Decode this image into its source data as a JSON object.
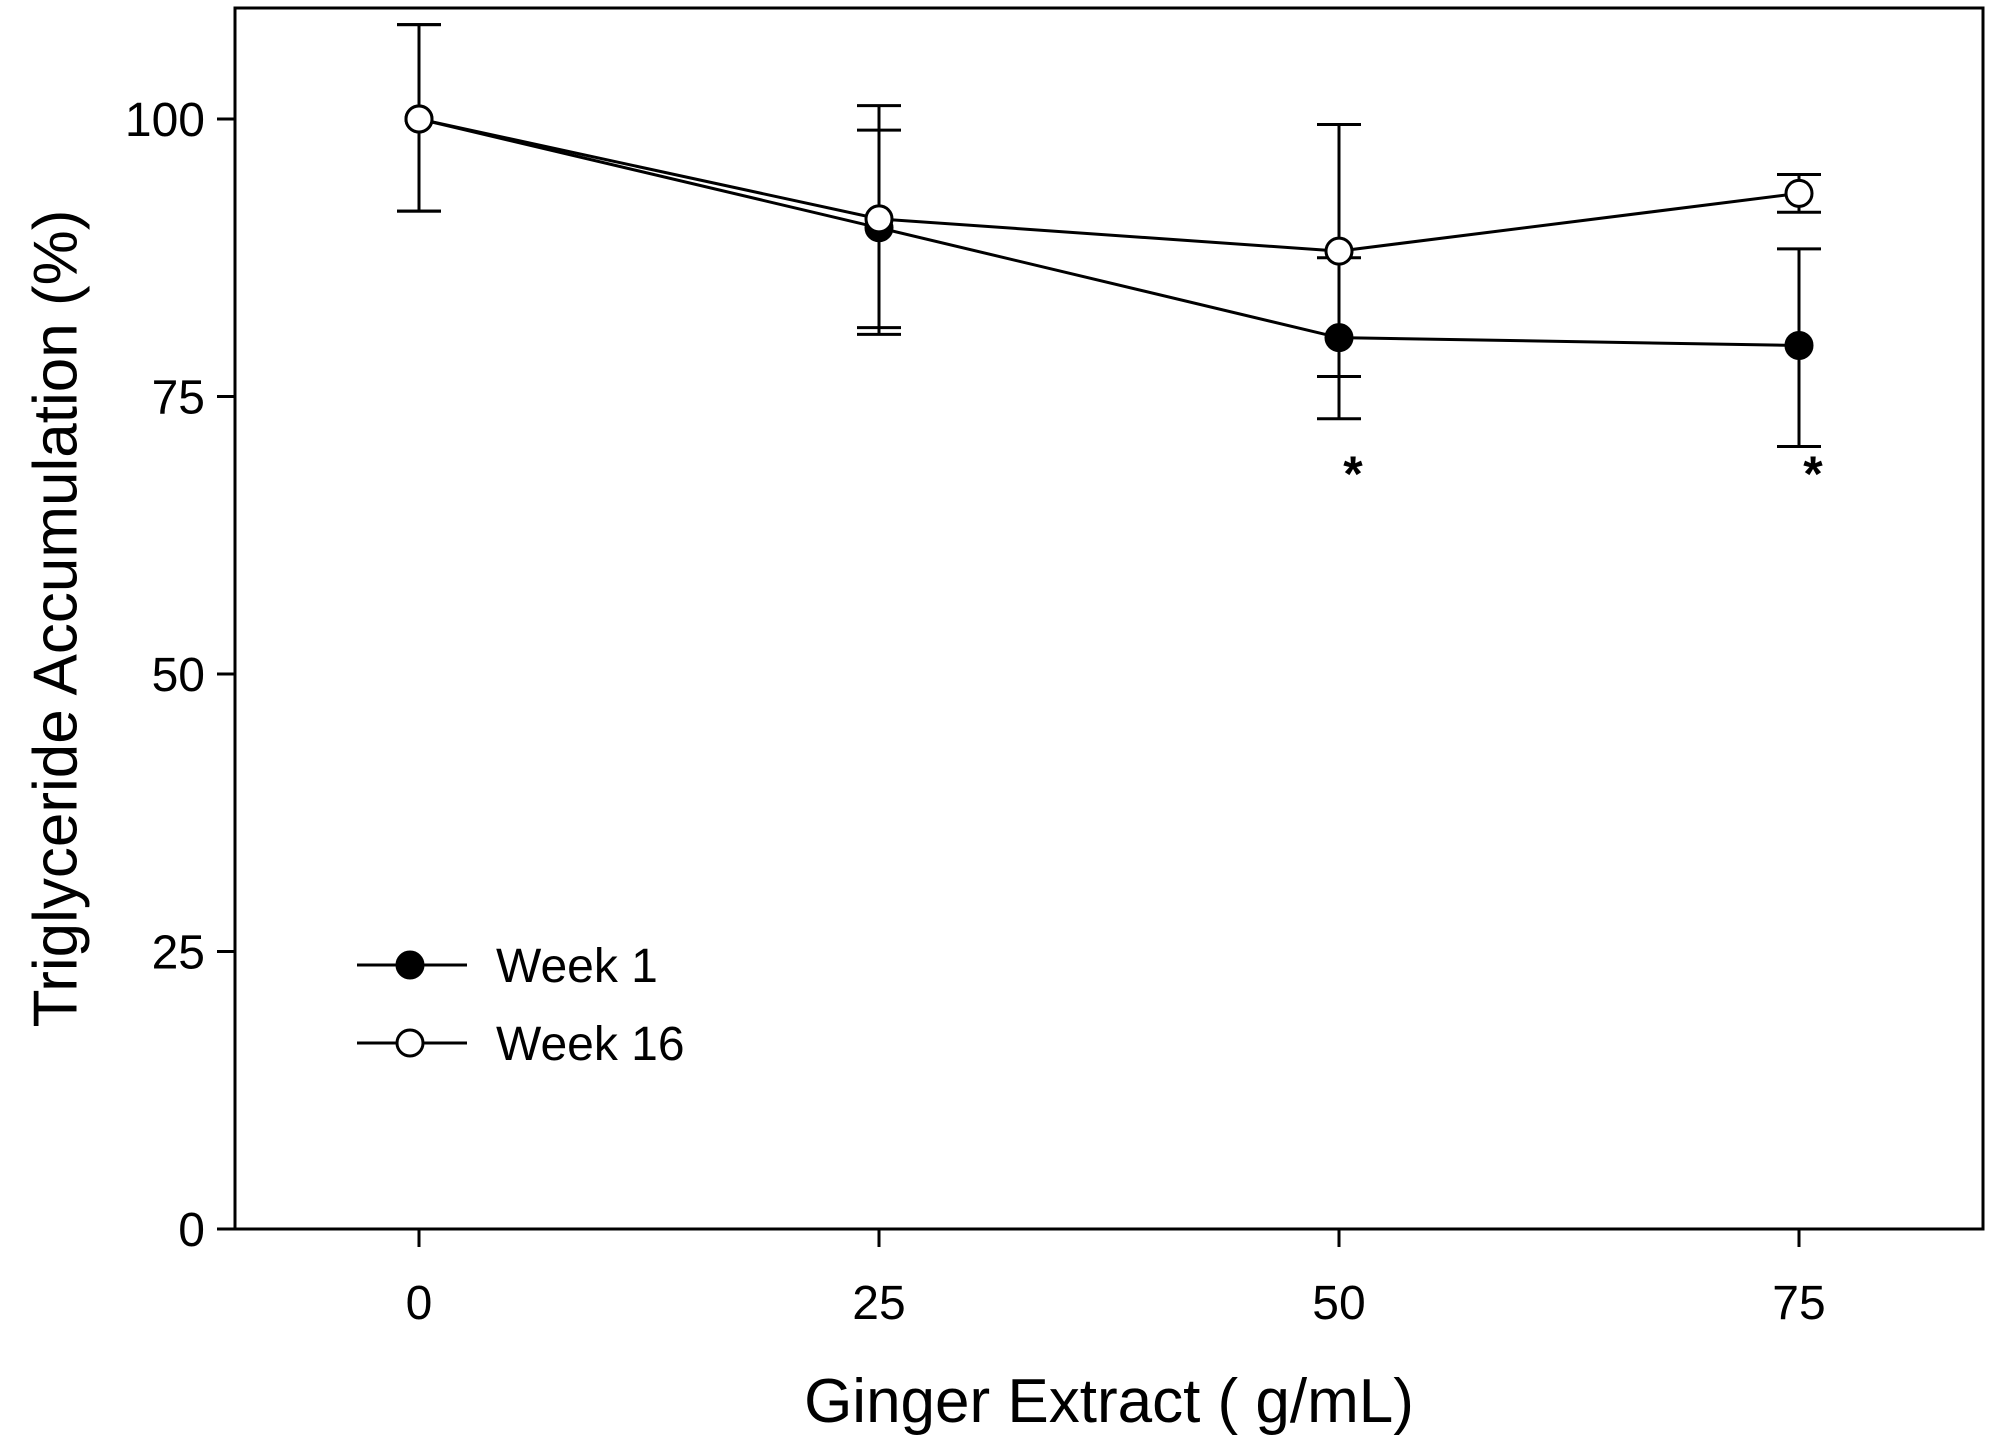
{
  "chart_data": {
    "type": "line",
    "title": "",
    "xlabel": "Ginger Extract ( g/mL)",
    "ylabel": "Triglyceride Accumulation (%)",
    "xlim": [
      -10,
      85
    ],
    "ylim": [
      0,
      110
    ],
    "x_ticks": [
      "0",
      "25",
      "50",
      "75"
    ],
    "y_ticks": [
      "0",
      "25",
      "50",
      "75",
      "100"
    ],
    "x": [
      0,
      25,
      50,
      75
    ],
    "series": [
      {
        "name": "Week 1",
        "marker": "filled-circle",
        "values": [
          100,
          90.2,
          80.3,
          79.6
        ],
        "err_upper": [
          108.5,
          99.0,
          87.5,
          88.3
        ],
        "err_lower": [
          91.7,
          81.2,
          73.0,
          70.5
        ]
      },
      {
        "name": "Week 16",
        "marker": "open-circle",
        "values": [
          100,
          91.0,
          88.1,
          93.3
        ],
        "err_upper": [
          108.5,
          101.2,
          99.5,
          95.0
        ],
        "err_lower": [
          91.7,
          80.6,
          76.8,
          91.6
        ]
      }
    ],
    "annotations": [
      {
        "text": "*",
        "x": 50,
        "y": 66.5
      },
      {
        "text": "*",
        "x": 75,
        "y": 66.5
      }
    ],
    "legend": {
      "position": "bottom-left"
    },
    "grid": false,
    "colors": {
      "line": "#000000",
      "filled": "#000000",
      "open": "#ffffff"
    }
  }
}
